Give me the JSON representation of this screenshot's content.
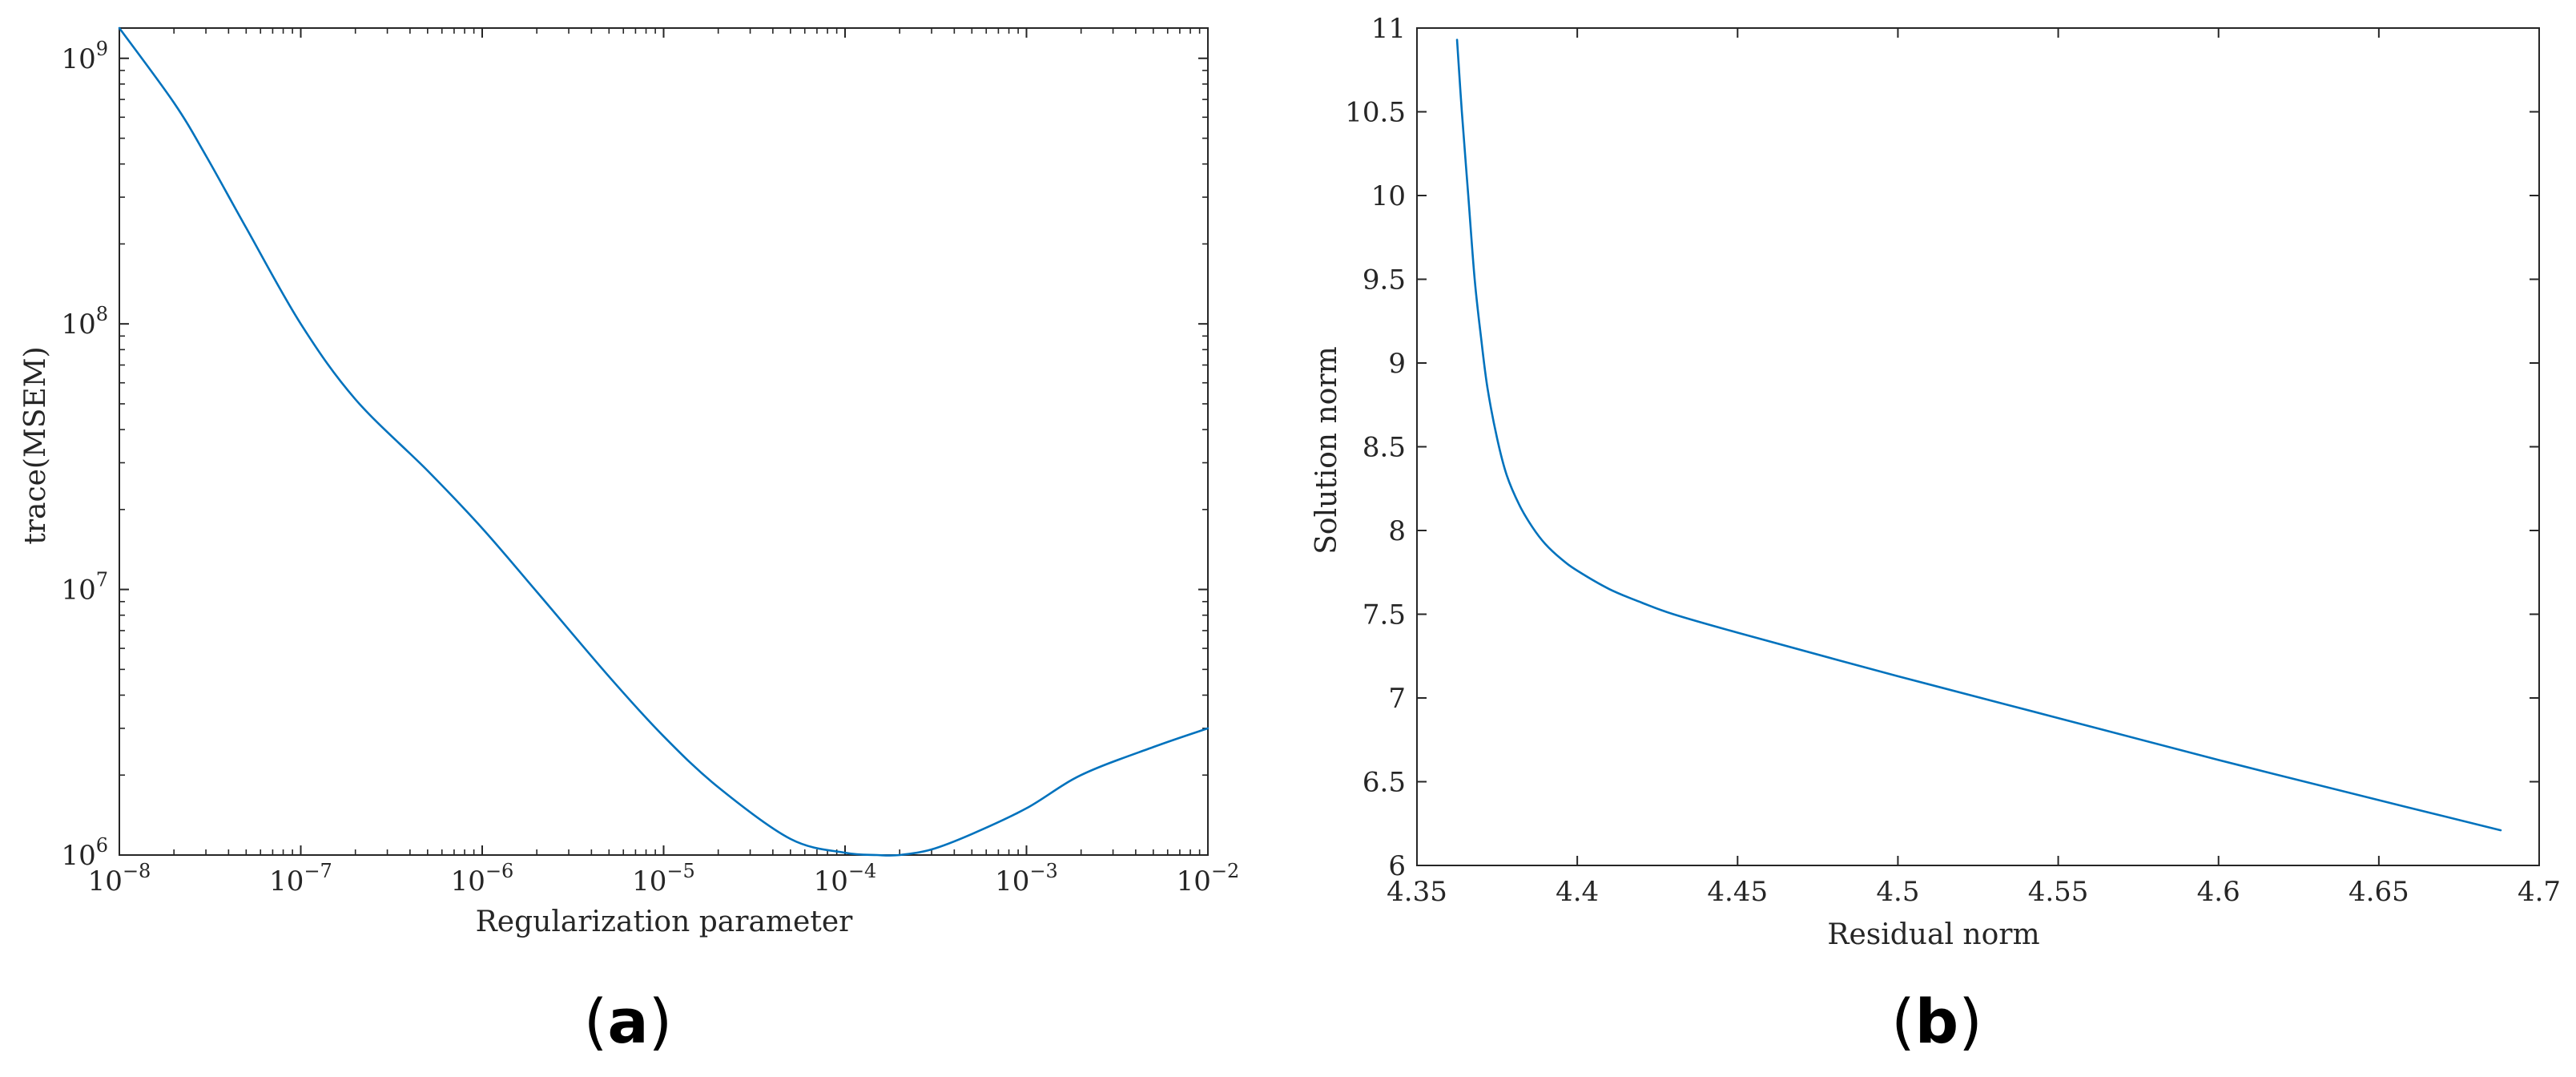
{
  "chart_data": [
    {
      "panel_label": "(a)",
      "panel_open": "(",
      "panel_letter": "a",
      "panel_close": ")",
      "type": "line",
      "xlabel": "Regularization parameter",
      "ylabel": "trace(MSEM)",
      "xscale": "log",
      "yscale": "log",
      "xlim": [
        1e-08,
        0.01
      ],
      "ylim": [
        1000000,
        1300000000
      ],
      "grid": false,
      "line_color": "#0072BD",
      "x_ticks": [
        {
          "value": 1e-08,
          "base": "10",
          "exp": "−8"
        },
        {
          "value": 1e-07,
          "base": "10",
          "exp": "−7"
        },
        {
          "value": 1e-06,
          "base": "10",
          "exp": "−6"
        },
        {
          "value": 1e-05,
          "base": "10",
          "exp": "−5"
        },
        {
          "value": 0.0001,
          "base": "10",
          "exp": "−4"
        },
        {
          "value": 0.001,
          "base": "10",
          "exp": "−3"
        },
        {
          "value": 0.01,
          "base": "10",
          "exp": "−2"
        }
      ],
      "y_ticks": [
        {
          "value": 1000000,
          "base": "10",
          "exp": "6"
        },
        {
          "value": 10000000,
          "base": "10",
          "exp": "7"
        },
        {
          "value": 100000000,
          "base": "10",
          "exp": "8"
        },
        {
          "value": 1000000000,
          "base": "10",
          "exp": "9"
        }
      ],
      "series": [
        {
          "x": [
            1e-08,
            2e-08,
            3e-08,
            5e-08,
            1e-07,
            2e-07,
            5e-07,
            1e-06,
            2e-06,
            5e-06,
            1e-05,
            2e-05,
            5e-05,
            0.0001,
            0.00015,
            0.0002,
            0.0003,
            0.0005,
            0.001,
            0.002,
            0.005,
            0.01
          ],
          "y": [
            1300000000,
            680000000,
            430000000,
            230000000,
            100000000,
            52000000,
            28000000,
            17000000,
            9800000,
            4700000,
            2800000,
            1800000,
            1150000,
            1020000,
            1000000,
            1000000,
            1050000,
            1200000,
            1500000,
            2000000,
            2550000,
            3000000
          ]
        }
      ]
    },
    {
      "panel_label": "(b)",
      "panel_open": "(",
      "panel_letter": "b",
      "panel_close": ")",
      "type": "line",
      "xlabel": "Residual norm",
      "ylabel": "Solution norm",
      "xlim": [
        4.35,
        4.7
      ],
      "ylim": [
        6,
        11
      ],
      "grid": false,
      "line_color": "#0072BD",
      "x_ticks": [
        {
          "value": 4.35,
          "label": "4.35"
        },
        {
          "value": 4.4,
          "label": "4.4"
        },
        {
          "value": 4.45,
          "label": "4.45"
        },
        {
          "value": 4.5,
          "label": "4.5"
        },
        {
          "value": 4.55,
          "label": "4.55"
        },
        {
          "value": 4.6,
          "label": "4.6"
        },
        {
          "value": 4.65,
          "label": "4.65"
        },
        {
          "value": 4.7,
          "label": "4.7"
        }
      ],
      "y_ticks": [
        {
          "value": 6,
          "label": "6"
        },
        {
          "value": 6.5,
          "label": "6.5"
        },
        {
          "value": 7,
          "label": "7"
        },
        {
          "value": 7.5,
          "label": "7.5"
        },
        {
          "value": 8,
          "label": "8"
        },
        {
          "value": 8.5,
          "label": "8.5"
        },
        {
          "value": 9,
          "label": "9"
        },
        {
          "value": 9.5,
          "label": "9.5"
        },
        {
          "value": 10,
          "label": "10"
        },
        {
          "value": 10.5,
          "label": "10.5"
        },
        {
          "value": 11,
          "label": "11"
        }
      ],
      "series": [
        {
          "x": [
            4.3625,
            4.364,
            4.366,
            4.368,
            4.37,
            4.372,
            4.375,
            4.378,
            4.382,
            4.386,
            4.39,
            4.395,
            4.4,
            4.41,
            4.42,
            4.43,
            4.45,
            4.5,
            4.55,
            4.6,
            4.65,
            4.688
          ],
          "y": [
            10.93,
            10.5,
            10.0,
            9.5,
            9.15,
            8.85,
            8.55,
            8.33,
            8.15,
            8.02,
            7.92,
            7.83,
            7.76,
            7.65,
            7.57,
            7.5,
            7.39,
            7.13,
            6.88,
            6.63,
            6.39,
            6.21
          ]
        }
      ]
    }
  ]
}
